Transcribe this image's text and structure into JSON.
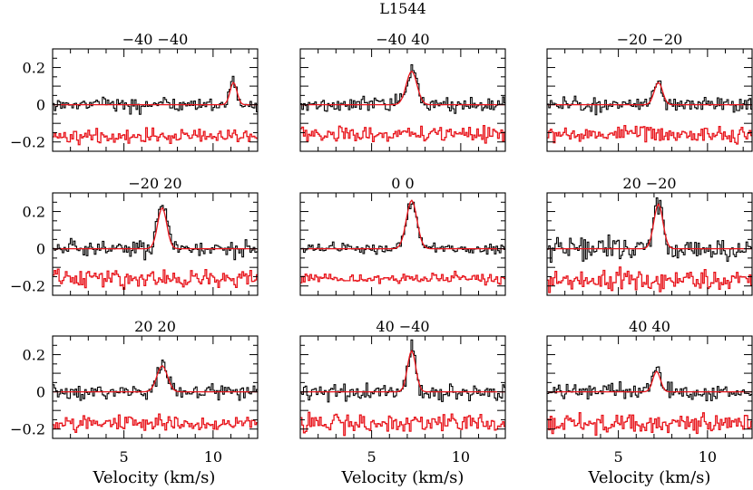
{
  "figure": {
    "title": "L1544",
    "xlabel": "Velocity (km/s)",
    "colors": {
      "observed": "#000000",
      "model": "#e8141b"
    }
  },
  "chart_data": {
    "type": "line",
    "title": "L1544",
    "xlabel": "Velocity (km/s)",
    "ylabel": "",
    "xlim": [
      1.0,
      12.5
    ],
    "ylim": [
      -0.25,
      0.3
    ],
    "x_ticks": [
      5,
      10
    ],
    "y_ticks": [
      {
        "value": 0.2,
        "label": "0.2"
      },
      {
        "value": 0.0,
        "label": "0"
      },
      {
        "value": -0.2,
        "label": "−0.2"
      }
    ],
    "grid": false,
    "panels": [
      {
        "label": "−40 −40",
        "peak": 0.12,
        "center": 11.1,
        "width": 0.45,
        "noise": 0.02,
        "model_peak": 0.12,
        "residual_offset": -0.17
      },
      {
        "label": "−40 40",
        "peak": 0.19,
        "center": 7.2,
        "width": 0.7,
        "noise": 0.022,
        "model_peak": 0.18,
        "residual_offset": -0.16
      },
      {
        "label": "−20 −20",
        "peak": 0.12,
        "center": 7.2,
        "width": 0.55,
        "noise": 0.022,
        "model_peak": 0.12,
        "residual_offset": -0.16
      },
      {
        "label": "−20 20",
        "peak": 0.24,
        "center": 7.1,
        "width": 0.6,
        "noise": 0.025,
        "model_peak": 0.22,
        "residual_offset": -0.16
      },
      {
        "label": "0 0",
        "peak": 0.26,
        "center": 7.2,
        "width": 0.7,
        "noise": 0.015,
        "model_peak": 0.26,
        "residual_offset": -0.16
      },
      {
        "label": "20 −20",
        "peak": 0.25,
        "center": 7.2,
        "width": 0.6,
        "noise": 0.03,
        "model_peak": 0.24,
        "residual_offset": -0.17
      },
      {
        "label": "20 20",
        "peak": 0.15,
        "center": 7.1,
        "width": 0.7,
        "noise": 0.022,
        "model_peak": 0.14,
        "residual_offset": -0.17
      },
      {
        "label": "40 −40",
        "peak": 0.23,
        "center": 7.2,
        "width": 0.55,
        "noise": 0.025,
        "model_peak": 0.22,
        "residual_offset": -0.17
      },
      {
        "label": "40 40",
        "peak": 0.12,
        "center": 7.1,
        "width": 0.5,
        "noise": 0.025,
        "model_peak": 0.11,
        "residual_offset": -0.17
      }
    ],
    "series": [
      {
        "color": "#000000",
        "description_role": "observed"
      },
      {
        "color": "#e8141b",
        "description_role": "model and residual"
      }
    ]
  }
}
